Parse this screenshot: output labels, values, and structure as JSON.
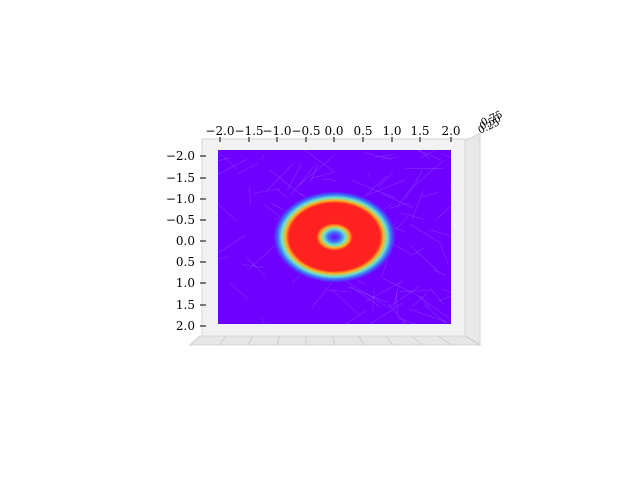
{
  "chart_data": {
    "type": "surface",
    "title": "",
    "xlabel": "",
    "ylabel": "",
    "zlabel": "",
    "view": "top-down",
    "colormap": "rainbow",
    "x_ticks": [
      "−2.0",
      "−1.5",
      "−1.0",
      "−0.5",
      "0.0",
      "0.5",
      "1.0",
      "1.5",
      "2.0"
    ],
    "y_ticks": [
      "−2.0",
      "−1.5",
      "−1.0",
      "−0.5",
      "0.0",
      "0.5",
      "1.0",
      "1.5",
      "2.0"
    ],
    "xlim": [
      -2,
      2
    ],
    "ylim": [
      -2,
      2
    ],
    "feature": {
      "shape": "ring",
      "center": [
        0,
        0
      ],
      "inner_radius": 0.25,
      "outer_radius": 1.0,
      "ring_value": "high",
      "background_value": "low"
    },
    "colors": {
      "low": "#6e00ff",
      "mid": "#80e0c0",
      "high": "#ff2020",
      "pane": "#f2f2f2"
    }
  }
}
